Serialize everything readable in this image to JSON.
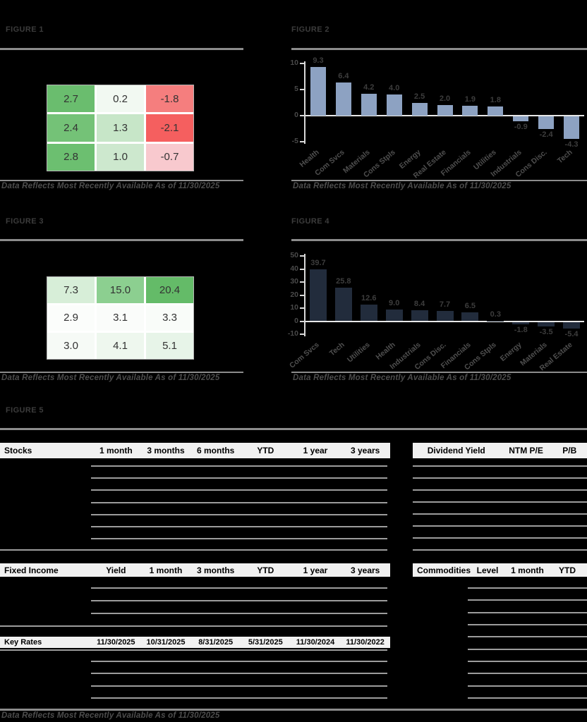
{
  "data_note": "Data Reflects Most Recently Available As of 11/30/2025",
  "figures": {
    "figure1": {
      "label": "FIGURE 1"
    },
    "figure2": {
      "label": "FIGURE 2"
    },
    "figure3": {
      "label": "FIGURE 3"
    },
    "figure4": {
      "label": "FIGURE 4"
    },
    "figure5": {
      "label": "FIGURE 5"
    }
  },
  "colors": {
    "background": "#000000",
    "figure_label": "#3c3c3c",
    "rule_gray": "#8c8c8c",
    "separator_gray": "#9c9c9c",
    "header_band": "#f1f1f1",
    "bar_blue": "#8da2c2",
    "bar_navy": "#222c3c"
  },
  "chart_data": [
    {
      "id": "figure1_heatmap",
      "type": "heatmap",
      "figure": "FIGURE 1",
      "values": [
        [
          2.7,
          0.2,
          -1.8
        ],
        [
          2.4,
          1.3,
          -2.1
        ],
        [
          2.8,
          1.0,
          -0.7
        ]
      ],
      "cell_colors": [
        [
          "#6abd6e",
          "#f2f9f2",
          "#f57e7e"
        ],
        [
          "#74c277",
          "#c7e6c8",
          "#f55f5f"
        ],
        [
          "#6cbf70",
          "#cde8ce",
          "#f8c9ce"
        ]
      ]
    },
    {
      "id": "figure2_bar",
      "type": "bar",
      "figure": "FIGURE 2",
      "categories": [
        "Health",
        "Com Svcs",
        "Materials",
        "Cons Stpls",
        "Energy",
        "Real Estate",
        "Financials",
        "Utilities",
        "Industrials",
        "Cons Disc.",
        "Tech"
      ],
      "values": [
        9.3,
        6.4,
        4.2,
        4.0,
        2.5,
        2.0,
        1.9,
        1.8,
        -0.9,
        -2.4,
        -4.3
      ],
      "yticks": [
        10,
        5,
        0,
        -5
      ],
      "ylim": [
        -5,
        10
      ],
      "bar_color": "#8da2c2",
      "grid": false,
      "legend": "none"
    },
    {
      "id": "figure3_heatmap",
      "type": "heatmap",
      "figure": "FIGURE 3",
      "values": [
        [
          7.3,
          15.0,
          20.4
        ],
        [
          2.9,
          3.1,
          3.3
        ],
        [
          3.0,
          4.1,
          5.1
        ]
      ],
      "cell_colors": [
        [
          "#d7eed8",
          "#8ccf90",
          "#64bb68"
        ],
        [
          "#fbfdfb",
          "#fafcfa",
          "#f9fcf9"
        ],
        [
          "#f6faf6",
          "#eef7ee",
          "#e7f4e8"
        ]
      ]
    },
    {
      "id": "figure4_bar",
      "type": "bar",
      "figure": "FIGURE 4",
      "categories": [
        "Com Svcs",
        "Tech",
        "Utilities",
        "Health",
        "Industrials",
        "Cons Disc.",
        "Financials",
        "Cons Stpls",
        "Energy",
        "Materials",
        "Real Estate"
      ],
      "values": [
        39.7,
        25.8,
        12.6,
        9.0,
        8.4,
        7.7,
        6.5,
        0.3,
        -1.8,
        -3.5,
        -5.4
      ],
      "yticks": [
        50,
        40,
        30,
        20,
        10,
        0,
        -10
      ],
      "ylim": [
        -10,
        50
      ],
      "bar_color": "#222c3c",
      "grid": false,
      "legend": "none"
    }
  ],
  "tables": {
    "stocks": {
      "title": "Stocks",
      "columns": [
        "1 month",
        "3 months",
        "6 months",
        "YTD",
        "1 year",
        "3 years"
      ],
      "visible_rows": 8
    },
    "dividend": {
      "columns": [
        "Dividend Yield",
        "NTM P/E",
        "P/B"
      ],
      "visible_rows": 8
    },
    "fixed_income": {
      "title": "Fixed Income",
      "columns": [
        "Yield",
        "1 month",
        "3 months",
        "YTD",
        "1 year",
        "3 years"
      ],
      "visible_rows": 4
    },
    "commodities": {
      "title": "Commodities",
      "columns": [
        "Level",
        "1 month",
        "YTD"
      ],
      "visible_rows": 10
    },
    "key_rates": {
      "title": "Key Rates",
      "columns": [
        "11/30/2025",
        "10/31/2025",
        "8/31/2025",
        "5/31/2025",
        "11/30/2024",
        "11/30/2022"
      ],
      "visible_rows": 4
    }
  }
}
